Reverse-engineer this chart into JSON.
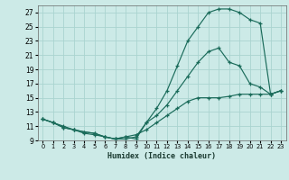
{
  "title": "",
  "xlabel": "Humidex (Indice chaleur)",
  "bg_color": "#cceae7",
  "grid_color": "#aad4d0",
  "line_color": "#1a6b5a",
  "xlim": [
    -0.5,
    23.5
  ],
  "ylim": [
    9,
    28
  ],
  "xticks": [
    0,
    1,
    2,
    3,
    4,
    5,
    6,
    7,
    8,
    9,
    10,
    11,
    12,
    13,
    14,
    15,
    16,
    17,
    18,
    19,
    20,
    21,
    22,
    23
  ],
  "yticks": [
    9,
    11,
    13,
    15,
    17,
    19,
    21,
    23,
    25,
    27
  ],
  "line1_x": [
    0,
    1,
    2,
    3,
    4,
    5,
    6,
    7,
    8,
    9,
    10,
    11,
    12,
    13,
    14,
    15,
    16,
    17,
    18,
    19,
    20,
    21,
    22,
    23
  ],
  "line1_y": [
    12,
    11.5,
    10.8,
    10.5,
    10.2,
    10.0,
    9.5,
    9.2,
    9.2,
    9.5,
    11.5,
    13.5,
    16,
    19.5,
    23,
    25,
    27,
    27.5,
    27.5,
    27,
    26,
    25.5,
    15.5,
    16
  ],
  "line2_x": [
    0,
    1,
    2,
    3,
    4,
    5,
    6,
    7,
    8,
    9,
    10,
    11,
    12,
    13,
    14,
    15,
    16,
    17,
    18,
    19,
    20,
    21,
    22,
    23
  ],
  "line2_y": [
    12,
    11.5,
    10.8,
    10.5,
    10.2,
    10.0,
    9.5,
    9.2,
    9.5,
    9.2,
    11.5,
    12.5,
    14,
    16,
    18,
    20,
    21.5,
    22,
    20,
    19.5,
    17,
    16.5,
    15.5,
    16
  ],
  "line3_x": [
    0,
    1,
    2,
    3,
    4,
    5,
    6,
    7,
    8,
    9,
    10,
    11,
    12,
    13,
    14,
    15,
    16,
    17,
    18,
    19,
    20,
    21,
    22,
    23
  ],
  "line3_y": [
    12,
    11.5,
    11.0,
    10.5,
    10.0,
    9.8,
    9.5,
    9.2,
    9.5,
    9.8,
    10.5,
    11.5,
    12.5,
    13.5,
    14.5,
    15.0,
    15.0,
    15.0,
    15.2,
    15.5,
    15.5,
    15.5,
    15.5,
    16
  ]
}
